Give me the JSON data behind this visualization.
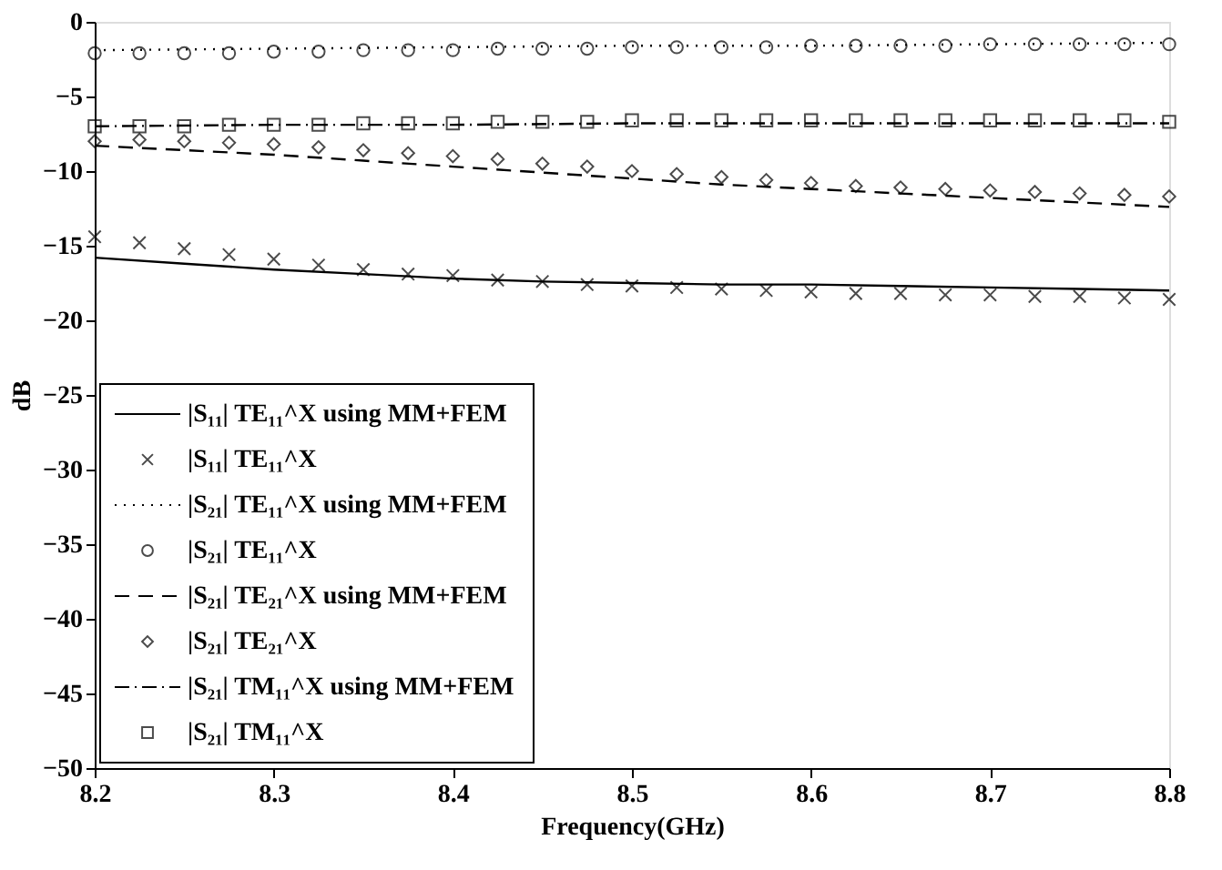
{
  "chart_data": {
    "type": "line",
    "xlabel": "Frequency(GHz)",
    "ylabel": "dB",
    "xlim": [
      8.2,
      8.8
    ],
    "ylim": [
      -50,
      0
    ],
    "xticks": [
      8.2,
      8.3,
      8.4,
      8.5,
      8.6,
      8.7,
      8.8
    ],
    "yticks": [
      -50,
      -45,
      -40,
      -35,
      -30,
      -25,
      -20,
      -15,
      -10,
      -5,
      0
    ],
    "grid": false,
    "legend": "bottom left",
    "series": [
      {
        "name": "|S₁₁| TE₁₁^X using MM+FEM",
        "line_style": "solid",
        "marker": "none",
        "color": "#000000",
        "x": [
          8.2,
          8.25,
          8.3,
          8.35,
          8.4,
          8.45,
          8.5,
          8.55,
          8.6,
          8.65,
          8.7,
          8.75,
          8.8
        ],
        "values": [
          -15.8,
          -16.2,
          -16.6,
          -16.9,
          -17.2,
          -17.4,
          -17.5,
          -17.6,
          -17.6,
          -17.7,
          -17.8,
          -17.9,
          -18.0
        ]
      },
      {
        "name": "|S₁₁| TE₁₁^X",
        "type": "scatter",
        "marker": "cross",
        "color": "#000000",
        "x": [
          8.2,
          8.225,
          8.25,
          8.275,
          8.3,
          8.325,
          8.35,
          8.375,
          8.4,
          8.425,
          8.45,
          8.475,
          8.5,
          8.525,
          8.55,
          8.575,
          8.6,
          8.625,
          8.65,
          8.675,
          8.7,
          8.725,
          8.75,
          8.775,
          8.8
        ],
        "values": [
          -14.4,
          -14.8,
          -15.2,
          -15.6,
          -15.9,
          -16.3,
          -16.6,
          -16.9,
          -17.0,
          -17.3,
          -17.4,
          -17.6,
          -17.7,
          -17.8,
          -17.9,
          -18.0,
          -18.1,
          -18.2,
          -18.2,
          -18.3,
          -18.3,
          -18.4,
          -18.4,
          -18.5,
          -18.6
        ]
      },
      {
        "name": "|S₂₁| TE₁₁^X using MM+FEM",
        "line_style": "dotted",
        "marker": "none",
        "color": "#000000",
        "x": [
          8.2,
          8.3,
          8.4,
          8.5,
          8.6,
          8.7,
          8.8
        ],
        "values": [
          -1.9,
          -1.8,
          -1.7,
          -1.6,
          -1.6,
          -1.5,
          -1.4
        ]
      },
      {
        "name": "|S₂₁| TE₁₁^X",
        "type": "scatter",
        "marker": "circle",
        "color": "#000000",
        "x": [
          8.2,
          8.225,
          8.25,
          8.275,
          8.3,
          8.325,
          8.35,
          8.375,
          8.4,
          8.425,
          8.45,
          8.475,
          8.5,
          8.525,
          8.55,
          8.575,
          8.6,
          8.625,
          8.65,
          8.675,
          8.7,
          8.725,
          8.75,
          8.775,
          8.8
        ],
        "values": [
          -2.1,
          -2.1,
          -2.1,
          -2.1,
          -2.0,
          -2.0,
          -1.9,
          -1.9,
          -1.9,
          -1.8,
          -1.8,
          -1.8,
          -1.7,
          -1.7,
          -1.7,
          -1.7,
          -1.6,
          -1.6,
          -1.6,
          -1.6,
          -1.5,
          -1.5,
          -1.5,
          -1.5,
          -1.5
        ]
      },
      {
        "name": "|S₂₁| TE₂₁^X using MM+FEM",
        "line_style": "dashed",
        "marker": "none",
        "color": "#000000",
        "x": [
          8.2,
          8.25,
          8.3,
          8.35,
          8.4,
          8.45,
          8.5,
          8.55,
          8.6,
          8.65,
          8.7,
          8.75,
          8.8
        ],
        "values": [
          -8.3,
          -8.6,
          -8.9,
          -9.3,
          -9.7,
          -10.1,
          -10.5,
          -10.9,
          -11.2,
          -11.5,
          -11.8,
          -12.1,
          -12.4
        ]
      },
      {
        "name": "|S₂₁| TE₂₁^X",
        "type": "scatter",
        "marker": "diamond",
        "color": "#000000",
        "x": [
          8.2,
          8.225,
          8.25,
          8.275,
          8.3,
          8.325,
          8.35,
          8.375,
          8.4,
          8.425,
          8.45,
          8.475,
          8.5,
          8.525,
          8.55,
          8.575,
          8.6,
          8.625,
          8.65,
          8.675,
          8.7,
          8.725,
          8.75,
          8.775,
          8.8
        ],
        "values": [
          -8.0,
          -7.9,
          -8.0,
          -8.1,
          -8.2,
          -8.4,
          -8.6,
          -8.8,
          -9.0,
          -9.2,
          -9.5,
          -9.7,
          -10.0,
          -10.2,
          -10.4,
          -10.6,
          -10.8,
          -11.0,
          -11.1,
          -11.2,
          -11.3,
          -11.4,
          -11.5,
          -11.6,
          -11.7
        ]
      },
      {
        "name": "|S₂₁| TM₁₁^X using MM+FEM",
        "line_style": "dashdot",
        "marker": "none",
        "color": "#000000",
        "x": [
          8.2,
          8.3,
          8.4,
          8.5,
          8.6,
          8.7,
          8.8
        ],
        "values": [
          -7.0,
          -6.9,
          -6.9,
          -6.8,
          -6.8,
          -6.8,
          -6.8
        ]
      },
      {
        "name": "|S₂₁| TM₁₁^X",
        "type": "scatter",
        "marker": "square",
        "color": "#000000",
        "x": [
          8.2,
          8.225,
          8.25,
          8.275,
          8.3,
          8.325,
          8.35,
          8.375,
          8.4,
          8.425,
          8.45,
          8.475,
          8.5,
          8.525,
          8.55,
          8.575,
          8.6,
          8.625,
          8.65,
          8.675,
          8.7,
          8.725,
          8.75,
          8.775,
          8.8
        ],
        "values": [
          -7.0,
          -7.0,
          -7.0,
          -6.9,
          -6.9,
          -6.9,
          -6.8,
          -6.8,
          -6.8,
          -6.7,
          -6.7,
          -6.7,
          -6.6,
          -6.6,
          -6.6,
          -6.6,
          -6.6,
          -6.6,
          -6.6,
          -6.6,
          -6.6,
          -6.6,
          -6.6,
          -6.6,
          -6.7
        ]
      }
    ]
  }
}
